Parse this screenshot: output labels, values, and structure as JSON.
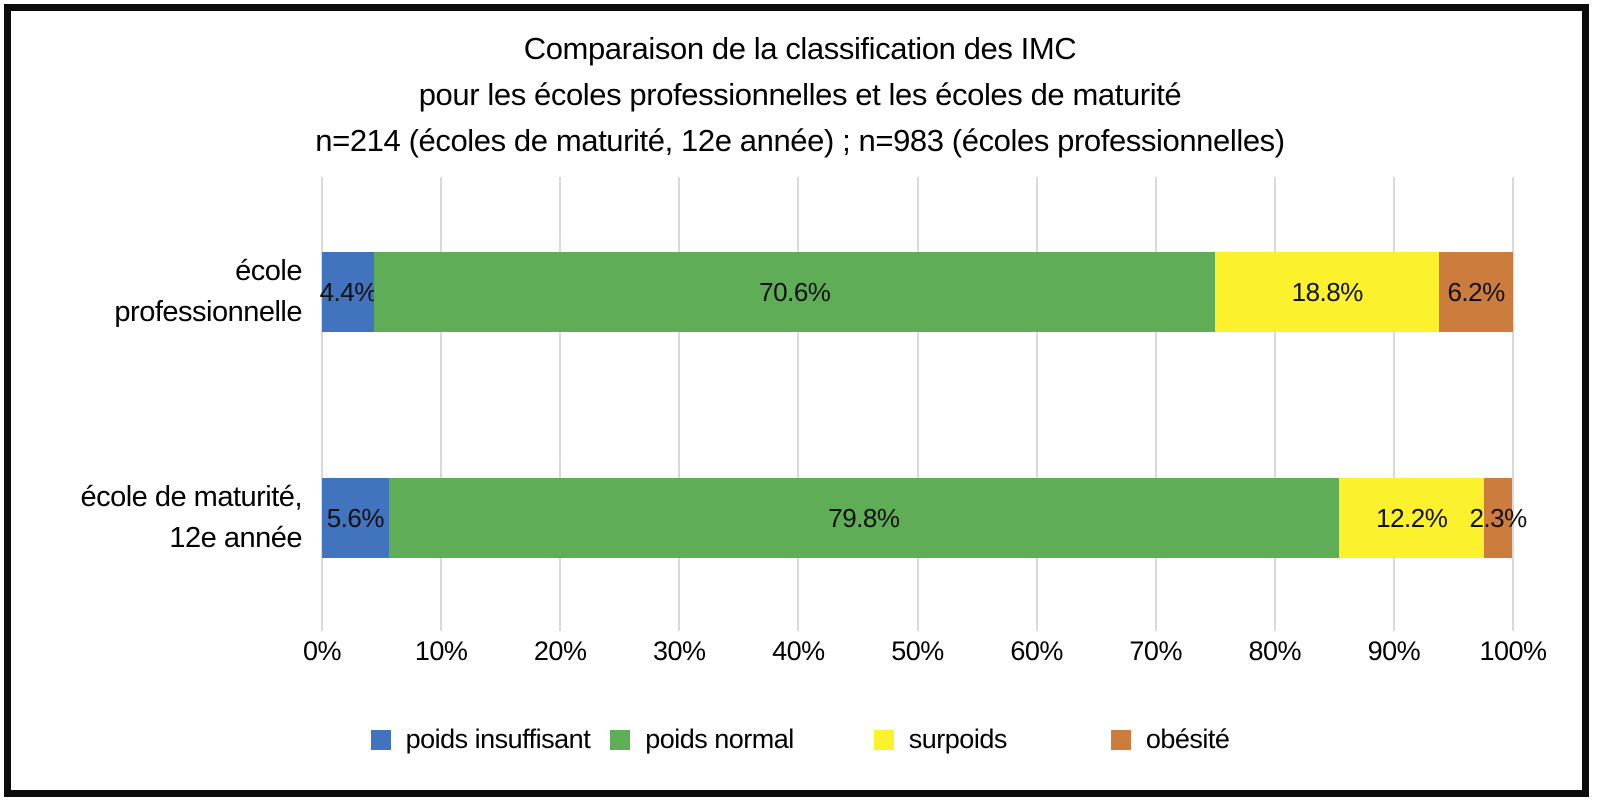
{
  "title": {
    "lines": [
      "Comparaison de la classification des IMC",
      "pour les écoles professionnelles et les écoles de maturité",
      "n=214 (écoles de maturité, 12e année) ; n=983 (écoles professionnelles)"
    ]
  },
  "chart_data": {
    "type": "bar",
    "orientation": "horizontal-stacked",
    "categories": [
      "école professionnelle",
      "école de maturité, 12e année"
    ],
    "category_lines": [
      [
        "école",
        "professionnelle"
      ],
      [
        "école de maturité,",
        "12e année"
      ]
    ],
    "series": [
      {
        "name": "poids insuffisant",
        "color": "#4273be",
        "values": [
          4.4,
          5.6
        ]
      },
      {
        "name": "poids normal",
        "color": "#5fad56",
        "values": [
          70.6,
          79.8
        ]
      },
      {
        "name": "surpoids",
        "color": "#fbf22d",
        "values": [
          18.8,
          12.2
        ]
      },
      {
        "name": "obésité",
        "color": "#cc7c3c",
        "values": [
          6.2,
          2.3
        ]
      }
    ],
    "data_labels": [
      [
        "4.4%",
        "70.6%",
        "18.8%",
        "6.2%"
      ],
      [
        "5.6%",
        "79.8%",
        "12.2%",
        "2.3%"
      ]
    ],
    "xlabel": "",
    "ylabel": "",
    "xlim": [
      0,
      100
    ],
    "xticks": [
      "0%",
      "10%",
      "20%",
      "30%",
      "40%",
      "50%",
      "60%",
      "70%",
      "80%",
      "90%",
      "100%"
    ],
    "grid": "vertical",
    "gridline_color": "#d9d9d9",
    "legend_position": "bottom",
    "text_color": "#000000",
    "frame_color": "#0b0b0b"
  }
}
